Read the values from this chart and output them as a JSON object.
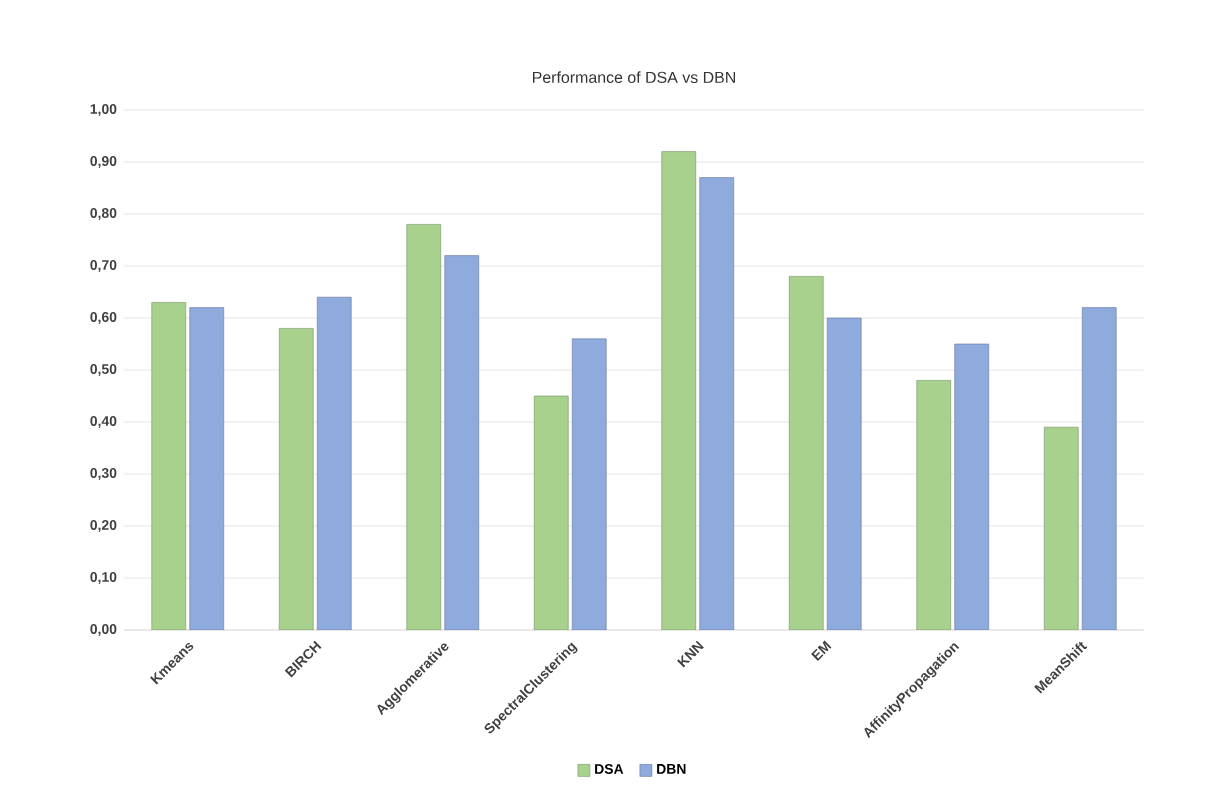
{
  "chart_data": {
    "type": "bar",
    "title": "Performance of DSA vs DBN",
    "categories": [
      "Kmeans",
      "BIRCH",
      "Agglomerative",
      "SpectralClustering",
      "KNN",
      "EM",
      "AffinityPropagation",
      "MeanShift"
    ],
    "series": [
      {
        "name": "DSA",
        "color": "#a9d18e",
        "values": [
          0.63,
          0.58,
          0.78,
          0.45,
          0.92,
          0.68,
          0.48,
          0.39
        ]
      },
      {
        "name": "DBN",
        "color": "#8faadc",
        "values": [
          0.62,
          0.64,
          0.72,
          0.56,
          0.87,
          0.6,
          0.55,
          0.62
        ]
      }
    ],
    "ylim": [
      0,
      1
    ],
    "yticks": [
      {
        "value": 0,
        "label": "0,00"
      },
      {
        "value": 0.1,
        "label": "0,10"
      },
      {
        "value": 0.2,
        "label": "0,20"
      },
      {
        "value": 0.3,
        "label": "0,30"
      },
      {
        "value": 0.4,
        "label": "0,40"
      },
      {
        "value": 0.5,
        "label": "0,50"
      },
      {
        "value": 0.6,
        "label": "0,60"
      },
      {
        "value": 0.7,
        "label": "0,70"
      },
      {
        "value": 0.8,
        "label": "0,80"
      },
      {
        "value": 0.9,
        "label": "0,90"
      },
      {
        "value": 1,
        "label": "1,00"
      }
    ],
    "grid": "y",
    "legend": "bottom"
  }
}
